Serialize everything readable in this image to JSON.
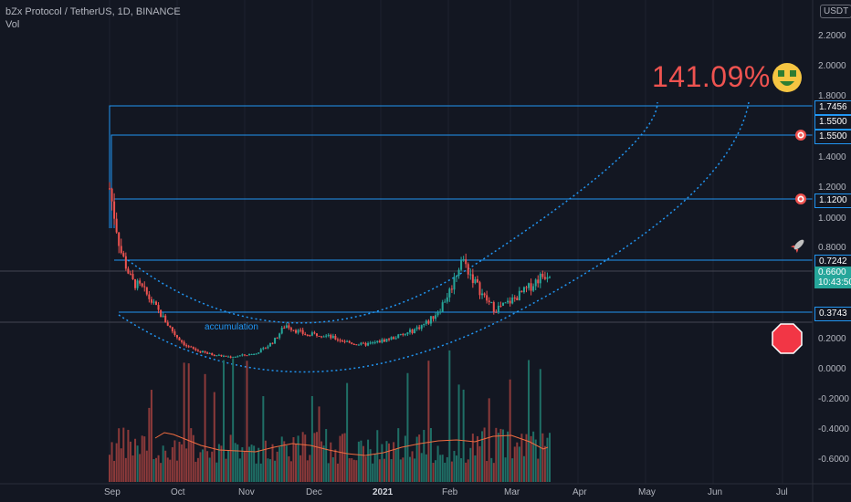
{
  "header": {
    "symbol_line": "bZx Protocol / TetherUS, 1D, BINANCE",
    "volume_label": "Vol"
  },
  "currency_button": "USDT",
  "annotation": {
    "percent_text": "141.09%",
    "accumulation_text": "accumulation"
  },
  "price_axis": {
    "ticks": [
      "2.2000",
      "2.0000",
      "1.8000",
      "1.4000",
      "1.2000",
      "1.0000",
      "0.8000",
      "0.2000",
      "0.0000",
      "-0.2000",
      "-0.4000",
      "-0.6000"
    ],
    "level_labels": [
      "1.7456",
      "1.5500",
      "1.5500",
      "1.1200",
      "0.7242",
      "0.3743"
    ],
    "current_price": "0.6600",
    "countdown": "10:43:50"
  },
  "time_axis": {
    "labels": [
      "Sep",
      "Oct",
      "Nov",
      "Dec",
      "2021",
      "Feb",
      "Mar",
      "Apr",
      "May",
      "Jun",
      "Jul"
    ]
  },
  "icons": [
    "money-face-icon",
    "target-icon",
    "target-icon",
    "rocket-icon",
    "stop-sign-icon"
  ],
  "colors": {
    "background": "#131722",
    "up": "#26a69a",
    "down": "#ef5350",
    "level_line": "#2196f3",
    "percent_text": "#ef5350"
  },
  "chart_data": {
    "type": "candlestick",
    "title": "bZx Protocol / TetherUS, 1D, BINANCE",
    "horizontal_levels": [
      1.7456,
      1.55,
      1.55,
      1.12,
      0.7242,
      0.3743
    ],
    "current_price": 0.66,
    "ylim": [
      -0.65,
      2.3
    ],
    "x_labels": [
      "Sep",
      "Oct",
      "Nov",
      "Dec",
      "2021",
      "Feb",
      "Mar",
      "Apr",
      "May",
      "Jun",
      "Jul"
    ],
    "close_series_approx": [
      1.2,
      0.8,
      0.6,
      0.55,
      0.45,
      0.35,
      0.25,
      0.18,
      0.15,
      0.13,
      0.12,
      0.11,
      0.12,
      0.13,
      0.16,
      0.22,
      0.32,
      0.28,
      0.25,
      0.26,
      0.24,
      0.22,
      0.2,
      0.19,
      0.2,
      0.22,
      0.24,
      0.26,
      0.3,
      0.34,
      0.42,
      0.55,
      0.75,
      0.62,
      0.5,
      0.42,
      0.45,
      0.5,
      0.55,
      0.62,
      0.66
    ]
  }
}
